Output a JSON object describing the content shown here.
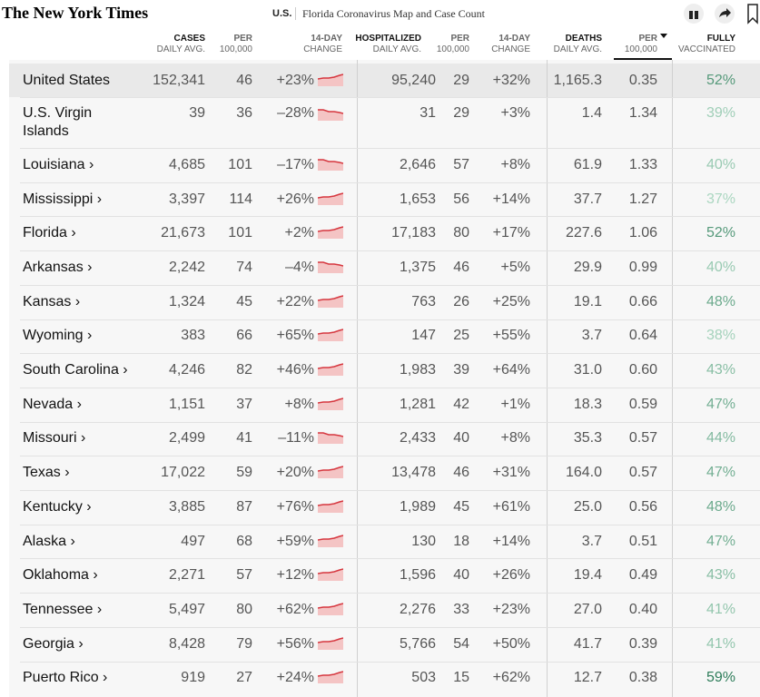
{
  "header": {
    "logo": "The New York Times",
    "section": "U.S.",
    "title": "Florida Coronavirus Map and Case Count"
  },
  "table": {
    "columns": [
      {
        "top": "CASES",
        "bottom": "DAILY AVG."
      },
      {
        "top": "PER",
        "bottom": "100,000"
      },
      {
        "top": "14-DAY",
        "bottom": "CHANGE"
      },
      {
        "top": "HOSPITALIZED",
        "bottom": "DAILY AVG."
      },
      {
        "top": "PER",
        "bottom": "100,000"
      },
      {
        "top": "14-DAY",
        "bottom": "CHANGE"
      },
      {
        "top": "DEATHS",
        "bottom": "DAILY AVG."
      },
      {
        "top": "PER",
        "bottom": "100,000"
      },
      {
        "top": "FULLY",
        "bottom": "VACCINATED"
      }
    ],
    "rows": [
      [
        "United States",
        "152,341",
        "46",
        "+23%",
        "95,240",
        "29",
        "+32%",
        "1,165.3",
        "0.35",
        "52%"
      ],
      [
        "U.S. Virgin Islands",
        "39",
        "36",
        "–28%",
        "31",
        "29",
        "+3%",
        "1.4",
        "1.34",
        "39%"
      ],
      [
        "Louisiana ›",
        "4,685",
        "101",
        "–17%",
        "2,646",
        "57",
        "+8%",
        "61.9",
        "1.33",
        "40%"
      ],
      [
        "Mississippi ›",
        "3,397",
        "114",
        "+26%",
        "1,653",
        "56",
        "+14%",
        "37.7",
        "1.27",
        "37%"
      ],
      [
        "Florida ›",
        "21,673",
        "101",
        "+2%",
        "17,183",
        "80",
        "+17%",
        "227.6",
        "1.06",
        "52%"
      ],
      [
        "Arkansas ›",
        "2,242",
        "74",
        "–4%",
        "1,375",
        "46",
        "+5%",
        "29.9",
        "0.99",
        "40%"
      ],
      [
        "Kansas ›",
        "1,324",
        "45",
        "+22%",
        "763",
        "26",
        "+25%",
        "19.1",
        "0.66",
        "48%"
      ],
      [
        "Wyoming ›",
        "383",
        "66",
        "+65%",
        "147",
        "25",
        "+55%",
        "3.7",
        "0.64",
        "38%"
      ],
      [
        "South Carolina ›",
        "4,246",
        "82",
        "+46%",
        "1,983",
        "39",
        "+64%",
        "31.0",
        "0.60",
        "43%"
      ],
      [
        "Nevada ›",
        "1,151",
        "37",
        "+8%",
        "1,281",
        "42",
        "+1%",
        "18.3",
        "0.59",
        "47%"
      ],
      [
        "Missouri ›",
        "2,499",
        "41",
        "–11%",
        "2,433",
        "40",
        "+8%",
        "35.3",
        "0.57",
        "44%"
      ],
      [
        "Texas ›",
        "17,022",
        "59",
        "+20%",
        "13,478",
        "46",
        "+31%",
        "164.0",
        "0.57",
        "47%"
      ],
      [
        "Kentucky ›",
        "3,885",
        "87",
        "+76%",
        "1,989",
        "45",
        "+61%",
        "25.0",
        "0.56",
        "48%"
      ],
      [
        "Alaska ›",
        "497",
        "68",
        "+59%",
        "130",
        "18",
        "+14%",
        "3.7",
        "0.51",
        "47%"
      ],
      [
        "Oklahoma ›",
        "2,271",
        "57",
        "+12%",
        "1,596",
        "40",
        "+26%",
        "19.4",
        "0.49",
        "43%"
      ],
      [
        "Tennessee ›",
        "5,497",
        "80",
        "+62%",
        "2,276",
        "33",
        "+23%",
        "27.0",
        "0.40",
        "41%"
      ],
      [
        "Georgia ›",
        "8,428",
        "79",
        "+56%",
        "5,766",
        "54",
        "+50%",
        "41.7",
        "0.39",
        "41%"
      ],
      [
        "Puerto Rico ›",
        "919",
        "27",
        "+24%",
        "503",
        "15",
        "+62%",
        "12.7",
        "0.38",
        "59%"
      ]
    ]
  }
}
